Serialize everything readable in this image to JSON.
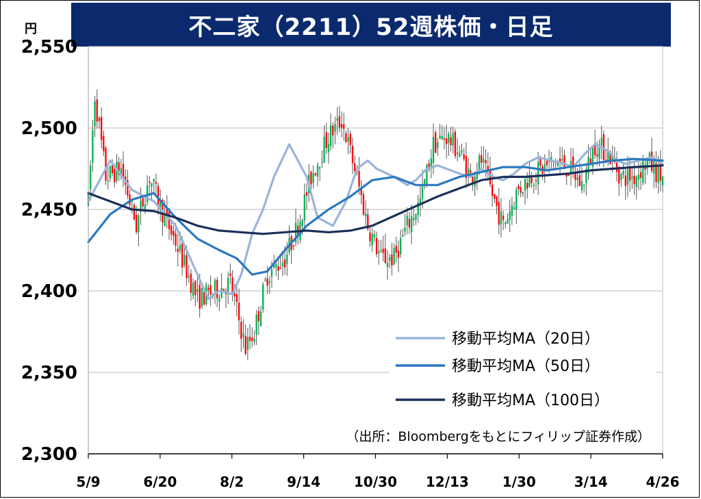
{
  "title": "不二家（2211）52週株価・日足",
  "chart_data": {
    "type": "candlestick",
    "unit": "円",
    "ylim": [
      2300,
      2550
    ],
    "yticks": [
      "2,300",
      "2,350",
      "2,400",
      "2,450",
      "2,500",
      "2,550"
    ],
    "ytick_values": [
      2300,
      2350,
      2400,
      2450,
      2500,
      2550
    ],
    "xticks": [
      "5/9",
      "6/20",
      "8/2",
      "9/14",
      "10/30",
      "12/13",
      "1/30",
      "3/14",
      "4/26"
    ],
    "grid": true,
    "up_color": "#00b050",
    "down_color": "#ff0000",
    "price_anchors": [
      [
        0,
        2455
      ],
      [
        3,
        2520
      ],
      [
        8,
        2470
      ],
      [
        15,
        2475
      ],
      [
        22,
        2440
      ],
      [
        28,
        2470
      ],
      [
        35,
        2445
      ],
      [
        40,
        2430
      ],
      [
        50,
        2395
      ],
      [
        58,
        2400
      ],
      [
        65,
        2405
      ],
      [
        72,
        2365
      ],
      [
        76,
        2375
      ],
      [
        82,
        2410
      ],
      [
        90,
        2420
      ],
      [
        96,
        2440
      ],
      [
        102,
        2470
      ],
      [
        110,
        2495
      ],
      [
        116,
        2505
      ],
      [
        122,
        2475
      ],
      [
        128,
        2440
      ],
      [
        134,
        2420
      ],
      [
        140,
        2420
      ],
      [
        146,
        2440
      ],
      [
        152,
        2455
      ],
      [
        158,
        2490
      ],
      [
        164,
        2495
      ],
      [
        170,
        2485
      ],
      [
        175,
        2470
      ],
      [
        180,
        2480
      ],
      [
        186,
        2455
      ],
      [
        190,
        2440
      ],
      [
        196,
        2460
      ],
      [
        202,
        2470
      ],
      [
        208,
        2475
      ],
      [
        214,
        2480
      ],
      [
        220,
        2475
      ],
      [
        226,
        2465
      ],
      [
        232,
        2490
      ],
      [
        238,
        2485
      ],
      [
        244,
        2470
      ],
      [
        250,
        2470
      ],
      [
        256,
        2480
      ],
      [
        262,
        2470
      ]
    ],
    "series": [
      {
        "name": "移動平均MA（20日）",
        "color": "#9ab4d8",
        "x": [
          0,
          10,
          20,
          30,
          40,
          45,
          50,
          55,
          60,
          66,
          70,
          75,
          80,
          85,
          92,
          100,
          105,
          112,
          118,
          123,
          128,
          132,
          140,
          146,
          150,
          155,
          160,
          170,
          175,
          180,
          185,
          190,
          195,
          200,
          206,
          212,
          218,
          222,
          228,
          232,
          238,
          242,
          246,
          252,
          258,
          263
        ],
        "values": [
          2455,
          2480,
          2462,
          2455,
          2440,
          2425,
          2410,
          2395,
          2400,
          2398,
          2410,
          2435,
          2450,
          2470,
          2490,
          2470,
          2445,
          2440,
          2455,
          2475,
          2480,
          2475,
          2470,
          2465,
          2468,
          2475,
          2477,
          2472,
          2470,
          2475,
          2470,
          2468,
          2472,
          2478,
          2482,
          2480,
          2478,
          2476,
          2485,
          2490,
          2486,
          2480,
          2478,
          2480,
          2482,
          2478
        ]
      },
      {
        "name": "移動平均MA（50日）",
        "color": "#2a78c0",
        "x": [
          0,
          10,
          20,
          30,
          40,
          50,
          60,
          68,
          75,
          82,
          90,
          100,
          110,
          120,
          130,
          140,
          150,
          160,
          170,
          180,
          190,
          200,
          210,
          220,
          230,
          240,
          250,
          263
        ],
        "values": [
          2430,
          2447,
          2456,
          2460,
          2445,
          2432,
          2425,
          2420,
          2410,
          2412,
          2425,
          2440,
          2450,
          2458,
          2468,
          2470,
          2465,
          2465,
          2470,
          2473,
          2476,
          2476,
          2474,
          2476,
          2478,
          2480,
          2481,
          2480
        ]
      },
      {
        "name": "移動平均MA（100日）",
        "color": "#1b2f5a",
        "x": [
          0,
          10,
          20,
          30,
          40,
          50,
          60,
          70,
          80,
          90,
          100,
          110,
          120,
          130,
          140,
          150,
          160,
          170,
          180,
          190,
          200,
          210,
          220,
          230,
          240,
          250,
          263
        ],
        "values": [
          2460,
          2455,
          2450,
          2449,
          2445,
          2440,
          2437,
          2436,
          2435,
          2436,
          2437,
          2436,
          2437,
          2440,
          2446,
          2452,
          2458,
          2463,
          2468,
          2470,
          2470,
          2471,
          2472,
          2474,
          2475,
          2476,
          2477
        ]
      }
    ],
    "source": "（出所：Bloombergをもとにフィリップ証券作成）"
  }
}
